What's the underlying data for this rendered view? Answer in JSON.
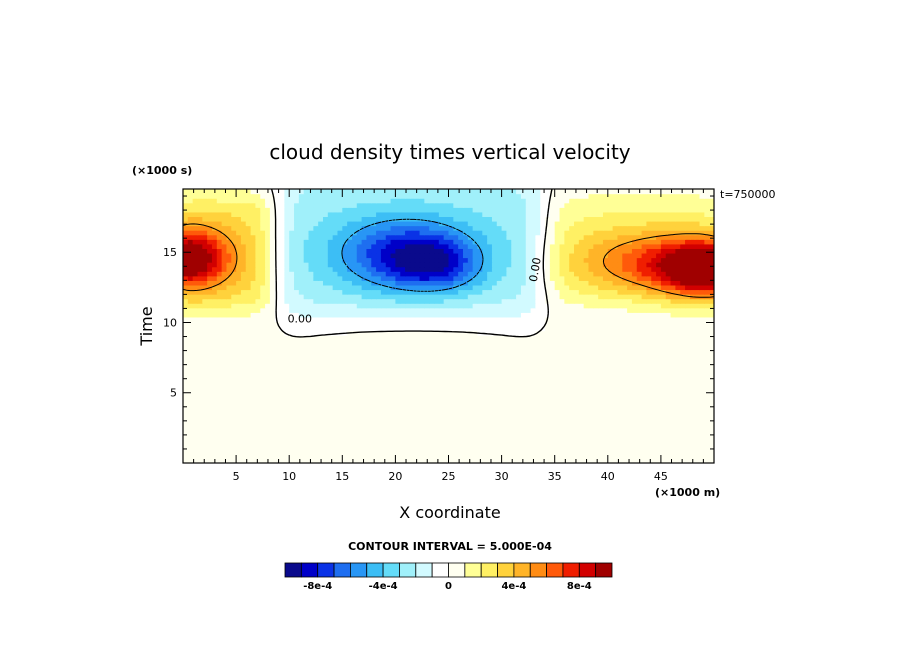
{
  "chart_data": {
    "type": "heatmap",
    "title": "cloud density times vertical velocity",
    "xlabel": "X coordinate",
    "ylabel": "Time",
    "x_unit": "(×1000 m)",
    "y_unit": "(×1000 s)",
    "time_label": "t=750000",
    "xlim": [
      0,
      50
    ],
    "ylim": [
      0,
      19.5
    ],
    "x_ticks": [
      5,
      10,
      15,
      20,
      25,
      30,
      35,
      40,
      45
    ],
    "y_ticks": [
      5,
      10,
      15
    ],
    "contour_interval_text": "CONTOUR INTERVAL = 5.000E-04",
    "contour_labels": [
      {
        "text": "0.00",
        "x": 11,
        "y": 10.3
      },
      {
        "text": "0.00",
        "x": 33.5,
        "y": 14
      }
    ],
    "background_value": 0,
    "features": [
      {
        "name": "positive maximum",
        "center": [
          0.5,
          14.5
        ],
        "peak": 0.0008
      },
      {
        "name": "positive maximum",
        "center": [
          49.5,
          13.7
        ],
        "peak": 0.0009
      },
      {
        "name": "negative minimum",
        "center": [
          21,
          14.8
        ],
        "peak": -0.0008
      }
    ],
    "colorbar": {
      "levels": [
        -0.001,
        -0.0009,
        -0.0008,
        -0.0007,
        -0.0006,
        -0.0005,
        -0.0004,
        -0.0003,
        -0.0002,
        -0.0001,
        0,
        0.0001,
        0.0002,
        0.0003,
        0.0004,
        0.0005,
        0.0006,
        0.0007,
        0.0008,
        0.0009,
        0.001
      ],
      "colors": [
        "#0a0a8c",
        "#0000c8",
        "#0a32e6",
        "#1e6ef0",
        "#2896f5",
        "#3cbef5",
        "#64dcf8",
        "#a0f0fa",
        "#d2faff",
        "#ffffff",
        "#fffff0",
        "#ffff96",
        "#fff064",
        "#ffd23c",
        "#ffb428",
        "#ff8c14",
        "#ff5a0a",
        "#f01e00",
        "#d20000",
        "#a00000"
      ],
      "tick_labels": [
        "-8e-4",
        "-4e-4",
        "0",
        "4e-4",
        "8e-4"
      ],
      "tick_values": [
        -0.0008,
        -0.0004,
        0,
        0.0004,
        0.0008
      ]
    }
  }
}
